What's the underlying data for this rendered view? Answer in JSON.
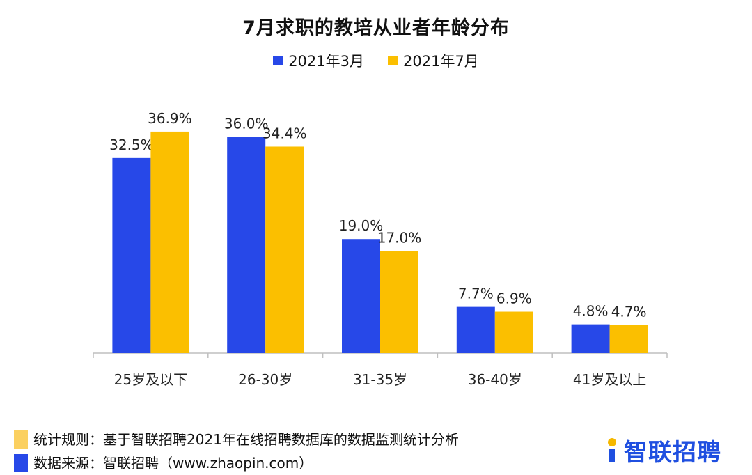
{
  "chart_data": {
    "type": "bar",
    "title": "7月求职的教培从业者年龄分布",
    "categories": [
      "25岁及以下",
      "26-30岁",
      "31-35岁",
      "36-40岁",
      "41岁及以上"
    ],
    "series": [
      {
        "name": "2021年3月",
        "color": "#2748e8",
        "values": [
          32.5,
          36.0,
          19.0,
          7.7,
          4.8
        ],
        "labels": [
          "32.5%",
          "36.0%",
          "19.0%",
          "7.7%",
          "4.8%"
        ]
      },
      {
        "name": "2021年7月",
        "color": "#fbbf00",
        "values": [
          36.9,
          34.4,
          17.0,
          6.9,
          4.7
        ],
        "labels": [
          "36.9%",
          "34.4%",
          "17.0%",
          "6.9%",
          "4.7%"
        ]
      }
    ],
    "unit": "%",
    "ylim": [
      0,
      40
    ],
    "legend_position": "top-center",
    "grid": false
  },
  "footnotes": [
    {
      "text": "统计规则：基于智联招聘2021年在线招聘数据库的数据监测统计分析",
      "color": "#fbd060"
    },
    {
      "text": "数据来源：智联招聘（www.zhaopin.com）",
      "color": "#2748e8"
    }
  ],
  "brand": {
    "name": "智联招聘",
    "color": "#1f4fe0",
    "accent_color": "#f5b800"
  }
}
